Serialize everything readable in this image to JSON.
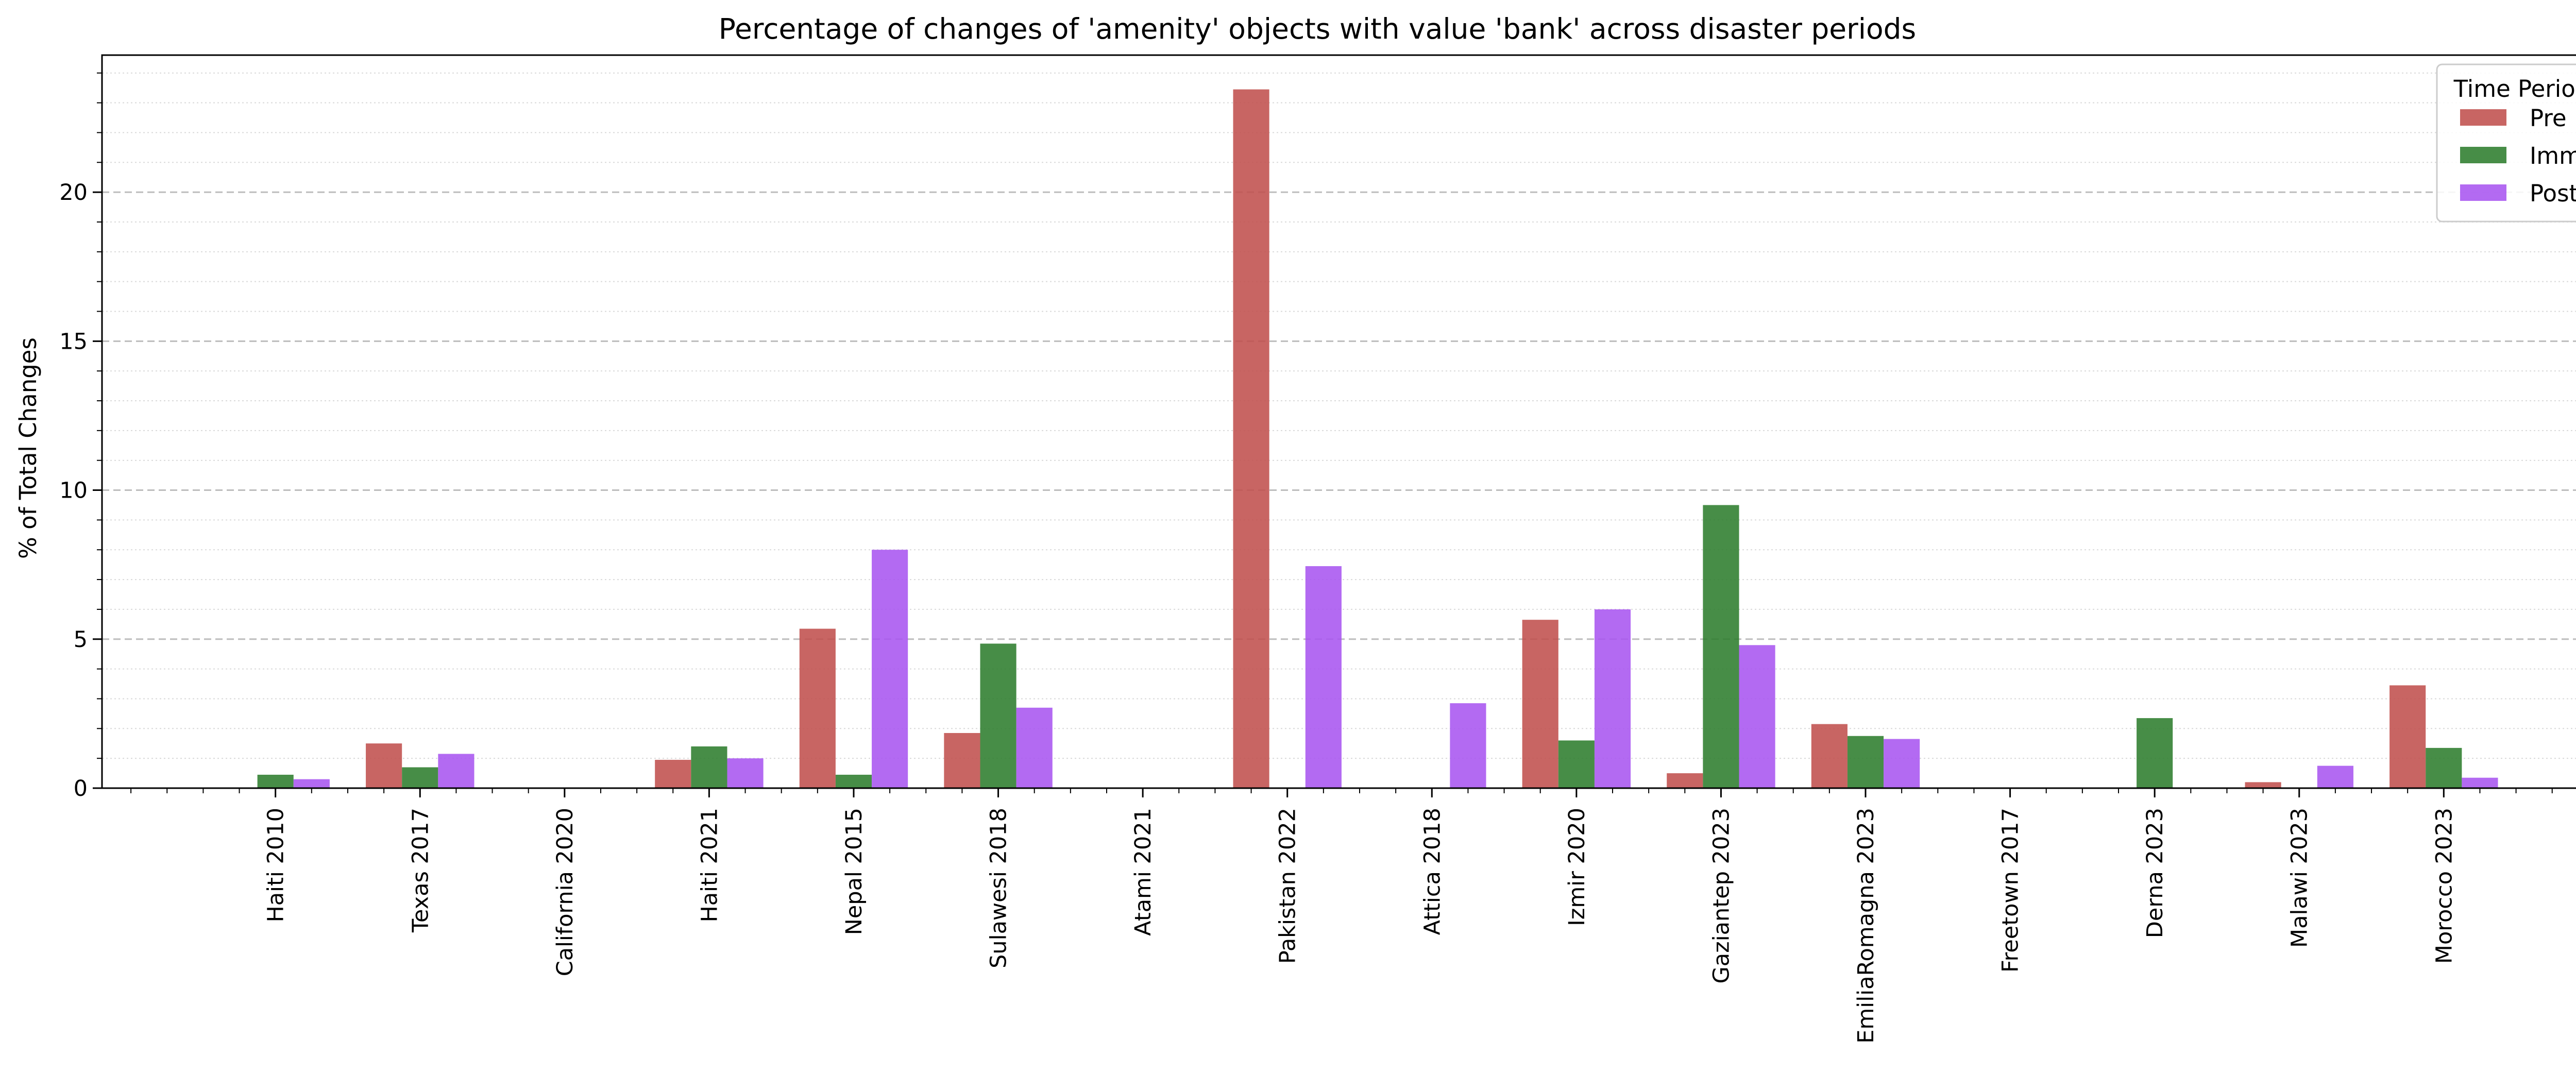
{
  "chart_data": {
    "type": "bar",
    "title": "Percentage of changes of 'amenity' objects with value 'bank' across disaster periods",
    "xlabel": "",
    "ylabel": "% of Total Changes",
    "ylim": [
      0,
      24.6
    ],
    "yticks": [
      0,
      5,
      10,
      15,
      20
    ],
    "grid": "horizontal dashed major, dotted minor",
    "legend": {
      "title": "Time Period",
      "placement": "top-right"
    },
    "categories": [
      "Haiti 2010",
      "Texas 2017",
      "California 2020",
      "Haiti 2021",
      "Nepal 2015",
      "Sulawesi 2018",
      "Atami 2021",
      "Pakistan 2022",
      "Attica 2018",
      "Izmir 2020",
      "Gaziantep 2023",
      "EmiliaRomagna 2023",
      "Freetown 2017",
      "Derna 2023",
      "Malawi 2023",
      "Morocco 2023"
    ],
    "series": [
      {
        "name": "Pre",
        "color": "#c0504d",
        "values": [
          0,
          1.5,
          0,
          0.95,
          5.35,
          1.85,
          0,
          23.45,
          0,
          5.65,
          0.5,
          2.15,
          0,
          0,
          0.2,
          3.45
        ]
      },
      {
        "name": "Imm",
        "color": "#2e7d2e",
        "values": [
          0.45,
          0.7,
          0,
          1.4,
          0.45,
          4.85,
          0,
          0,
          0,
          1.6,
          9.5,
          1.75,
          0,
          2.35,
          0,
          1.35
        ]
      },
      {
        "name": "Post",
        "color": "#a855f0",
        "values": [
          0.3,
          1.15,
          0,
          1.0,
          8.0,
          2.7,
          0,
          7.45,
          2.85,
          6.0,
          4.8,
          1.65,
          0,
          0,
          0.75,
          0.35
        ]
      }
    ]
  }
}
